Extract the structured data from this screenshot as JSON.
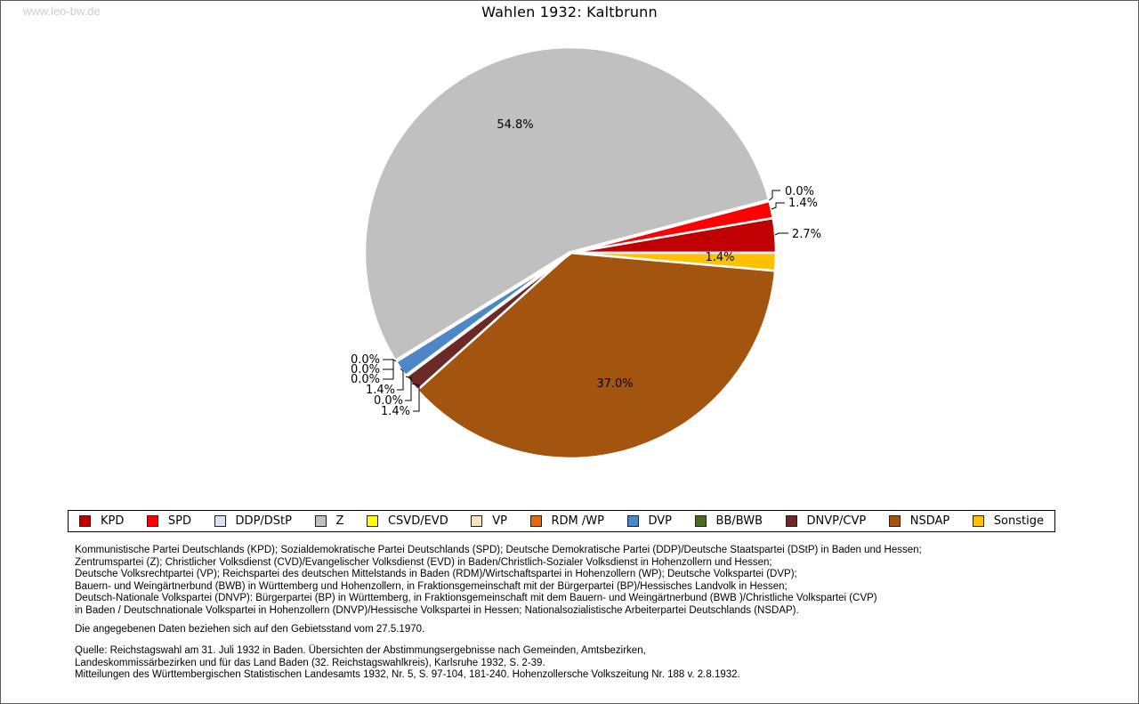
{
  "page": {
    "watermark": "www.leo-bw.de"
  },
  "chart_data": {
    "type": "pie",
    "title": "Wahlen 1932: Kaltbrunn",
    "value_unit": "%",
    "direction": "counterclockwise",
    "start_angle_deg": 0,
    "slices": [
      {
        "party": "KPD",
        "value": 2.7,
        "color": "#C00000"
      },
      {
        "party": "SPD",
        "value": 1.4,
        "color": "#FF0000"
      },
      {
        "party": "DDP/DStP",
        "value": 0.0,
        "color": "#D9E2F3"
      },
      {
        "party": "Z",
        "value": 54.8,
        "color": "#C0C0C0"
      },
      {
        "party": "CSVD/EVD",
        "value": 0.0,
        "color": "#FFFF00"
      },
      {
        "party": "VP",
        "value": 0.0,
        "color": "#FBE2C5"
      },
      {
        "party": "RDM /WP",
        "value": 0.0,
        "color": "#E36C0A"
      },
      {
        "party": "DVP",
        "value": 1.4,
        "color": "#4E87C8"
      },
      {
        "party": "BB/BWB",
        "value": 0.0,
        "color": "#4D6B21"
      },
      {
        "party": "DNVP/CVP",
        "value": 1.4,
        "color": "#6B2A28"
      },
      {
        "party": "NSDAP",
        "value": 37.0,
        "color": "#A3540E"
      },
      {
        "party": "Sonstige",
        "value": 1.4,
        "color": "#FFC000"
      }
    ]
  },
  "footnotes": {
    "party_explanations": [
      "Kommunistische Partei Deutschlands (KPD); Sozialdemokratische Partei Deutschlands (SPD); Deutsche Demokratische Partei (DDP)/Deutsche Staatspartei (DStP) in Baden und Hessen;",
      "Zentrumspartei (Z); Christlicher Volksdienst (CVD)/Evangelischer Volksdienst (EVD) in Baden/Christlich-Sozialer Volksdienst in Hohenzollern und Hessen;",
      "Deutsche Volksrechtpartei (VP); Reichspartei des deutschen Mittelstands in Baden (RDM)/Wirtschaftspartei in Hohenzollern (WP); Deutsche Volkspartei (DVP);",
      "Bauern- und Weingärtnerbund (BWB) in Württemberg und Hohenzollern, in Fraktionsgemeinschaft mit der Bürgerpartei (BP)/Hessisches Landvolk in Hessen;",
      "Deutsch-Nationale Volkspartei (DNVP): Bürgerpartei (BP) in Württemberg, in Fraktionsgemeinschaft mit dem Bauern- und Weingärtnerbund (BWB )/Christliche Volkspartei (CVP)",
      "in Baden / Deutschnationale Volkspartei in Hohenzollern (DNVP)/Hessische Volkspartei in Hessen; Nationalsozialistische Arbeiterpartei Deutschlands (NSDAP)."
    ],
    "territory_note": "Die angegebenen Daten beziehen sich auf den Gebietsstand vom 27.5.1970.",
    "sources": [
      "Quelle: Reichstagswahl am 31. Juli 1932 in Baden. Übersichten der Abstimmungsergebnisse nach Gemeinden, Amtsbezirken,",
      "Landeskommissärbezirken und für das Land Baden (32. Reichstagswahlkreis), Karlsruhe 1932, S. 2-39.",
      "Mitteilungen des Württembergischen Statistischen Landesamts 1932, Nr. 5, S. 97-104, 181-240. Hohenzollersche Volkszeitung Nr. 188 v. 2.8.1932."
    ]
  }
}
